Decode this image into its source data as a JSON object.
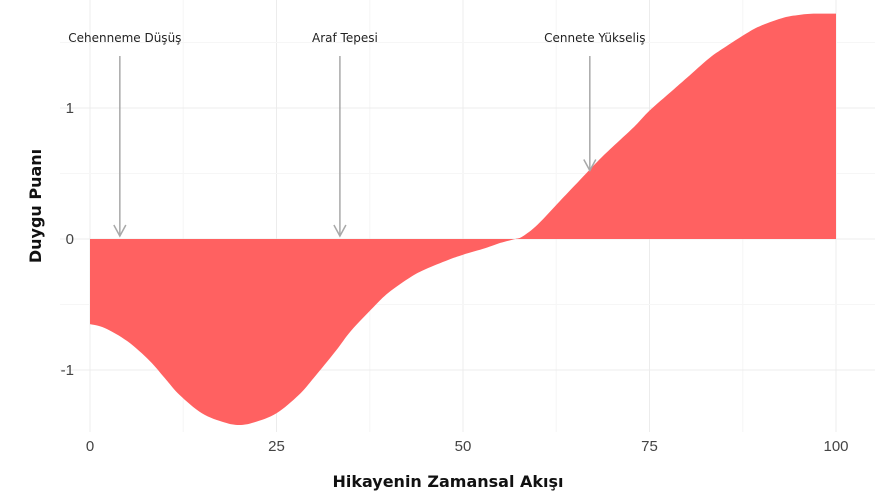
{
  "chart_data": {
    "type": "area",
    "title": "",
    "xlabel": "Hikayenin Zamansal Akışı",
    "ylabel": "Duygu Puanı",
    "xlim": [
      0,
      100
    ],
    "ylim": [
      -1.45,
      1.75
    ],
    "grid": true,
    "x_ticks": [
      {
        "value": 0,
        "label": "0"
      },
      {
        "value": 25,
        "label": "25"
      },
      {
        "value": 50,
        "label": "50"
      },
      {
        "value": 75,
        "label": "75"
      },
      {
        "value": 100,
        "label": "100"
      }
    ],
    "y_ticks": [
      {
        "value": 1,
        "label": "1"
      },
      {
        "value": 0,
        "label": "0"
      },
      {
        "value": -1,
        "label": "-1"
      }
    ],
    "fill_color": "#ff6161",
    "series": [
      {
        "x": [
          0,
          2,
          5,
          8,
          10,
          12,
          15,
          18,
          20,
          22,
          25,
          28,
          30,
          33,
          35,
          38,
          40,
          43,
          45,
          48,
          50,
          53,
          55,
          57,
          58,
          60,
          63,
          65,
          68,
          70,
          73,
          75,
          78,
          80,
          83,
          85,
          88,
          90,
          93,
          95,
          97,
          100
        ],
        "y": [
          -0.65,
          -0.68,
          -0.78,
          -0.93,
          -1.06,
          -1.19,
          -1.33,
          -1.4,
          -1.42,
          -1.4,
          -1.33,
          -1.19,
          -1.06,
          -0.85,
          -0.7,
          -0.52,
          -0.41,
          -0.29,
          -0.23,
          -0.16,
          -0.12,
          -0.07,
          -0.03,
          0.0,
          0.02,
          0.11,
          0.29,
          0.41,
          0.59,
          0.7,
          0.86,
          0.98,
          1.13,
          1.23,
          1.38,
          1.46,
          1.57,
          1.63,
          1.69,
          1.71,
          1.72,
          1.72
        ]
      }
    ],
    "annotations": [
      {
        "label": "Cehenneme Düşüş",
        "x": 4,
        "y": 0.0
      },
      {
        "label": "Araf Tepesi",
        "x": 33.5,
        "y": 0.0
      },
      {
        "label": "Cennete Yükseliş",
        "x": 67,
        "y": 0.5
      }
    ]
  }
}
